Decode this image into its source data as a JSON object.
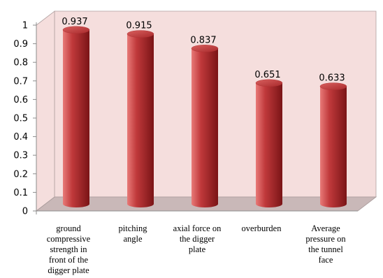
{
  "chart_data": {
    "type": "bar",
    "title": "",
    "xlabel": "",
    "ylabel": "",
    "ylim": [
      0,
      1
    ],
    "yticks": [
      "0",
      "0.1",
      "0.2",
      "0.3",
      "0.4",
      "0.5",
      "0.6",
      "0.7",
      "0.8",
      "0.9",
      "1"
    ],
    "grid": false,
    "legend": "none",
    "style": "3d-cylinder",
    "categories": [
      [
        "ground",
        "compressive",
        "strength in",
        "front of the",
        "digger plate"
      ],
      [
        "pitching",
        "angle"
      ],
      [
        "axial force on",
        "the digger",
        "plate"
      ],
      [
        "overburden"
      ],
      [
        "Average",
        "pressure on",
        "the tunnel",
        "face"
      ]
    ],
    "values": [
      0.937,
      0.915,
      0.837,
      0.651,
      0.633
    ],
    "value_labels": [
      "0.937",
      "0.915",
      "0.837",
      "0.651",
      "0.633"
    ],
    "colors": {
      "bar": "#c0393b",
      "bar_highlight": "#e87a78",
      "bar_shadow": "#7a1416",
      "wall": "#f5dedd",
      "floor": "#c9b8b8",
      "axis": "#8c8c8c"
    }
  }
}
